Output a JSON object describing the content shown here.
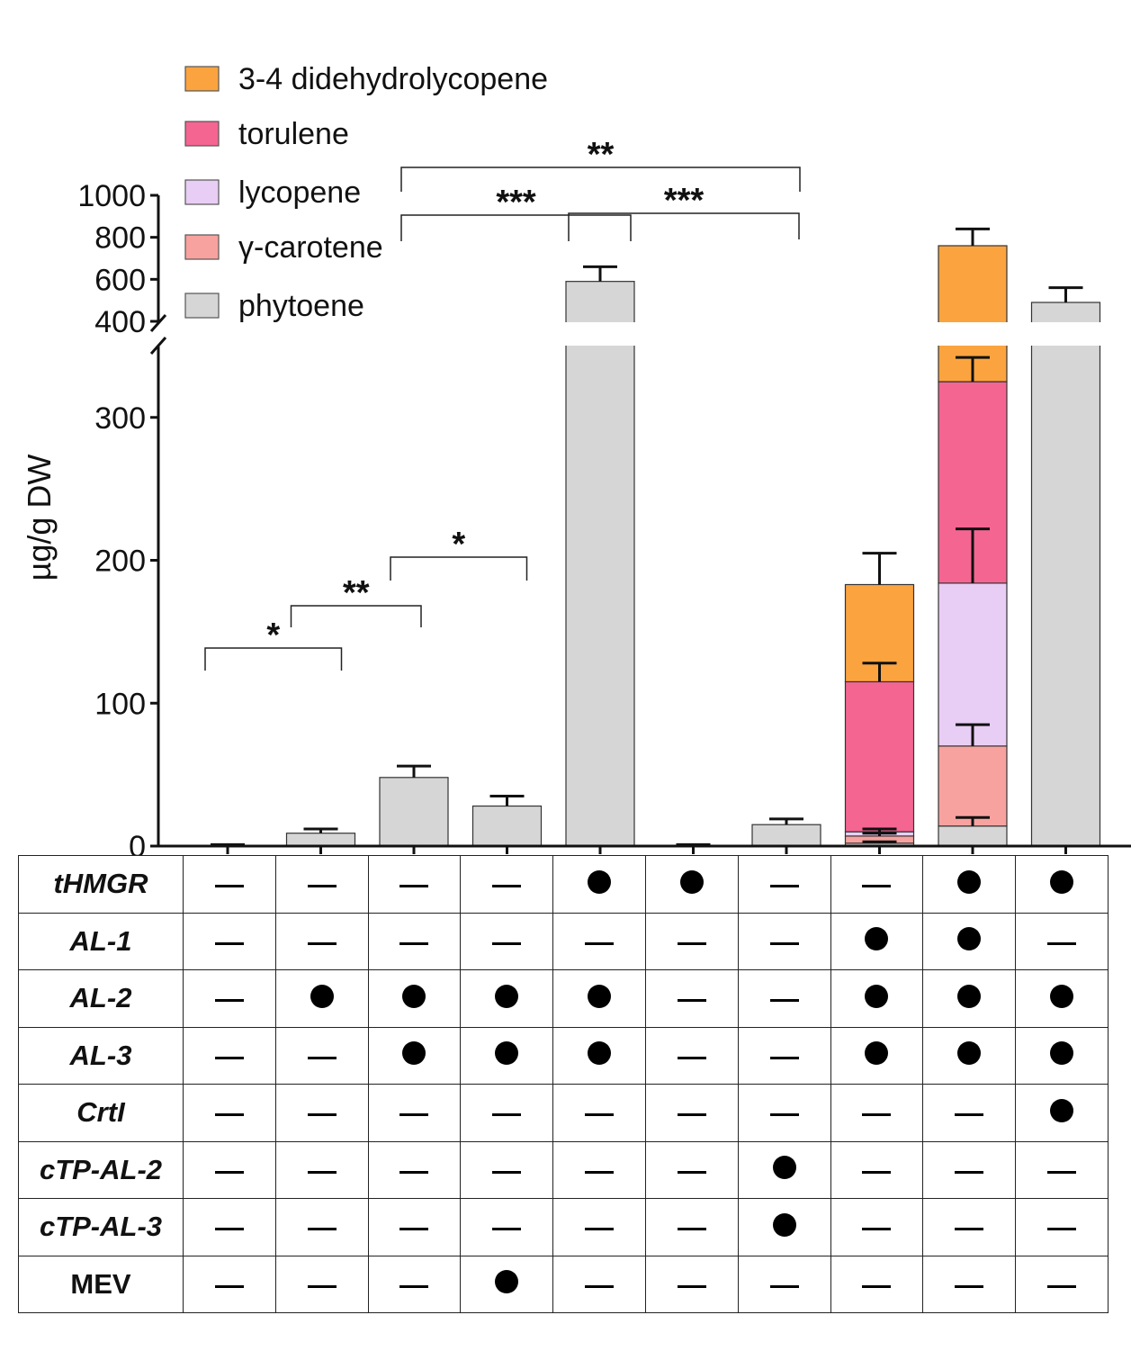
{
  "chart_data": {
    "type": "bar",
    "stacked": true,
    "ylabel": "µg/g DW",
    "axis_break": true,
    "y_lower": {
      "range": [
        0,
        350
      ],
      "ticks": [
        0,
        100,
        200,
        300
      ],
      "tick_labels": [
        "0",
        "100",
        "200",
        "300"
      ]
    },
    "y_upper": {
      "range": [
        400,
        1000
      ],
      "ticks": [
        400,
        600,
        800,
        1000
      ],
      "tick_labels": [
        "400",
        "600",
        "800",
        "1000"
      ]
    },
    "legend": [
      {
        "name": "3-4 didehydrolycopene",
        "color": "#FBA43F"
      },
      {
        "name": "torulene",
        "color": "#F56592"
      },
      {
        "name": "lycopene",
        "color": "#E8CDF4"
      },
      {
        "name": "γ-carotene",
        "color": "#F7A29F"
      },
      {
        "name": "phytoene",
        "color": "#D6D6D6"
      }
    ],
    "stack_order": [
      "phytoene",
      "γ-carotene",
      "lycopene",
      "torulene",
      "3-4 didehydrolycopene"
    ],
    "bars": [
      {
        "index": 1,
        "segments": {
          "phytoene": 0.5
        },
        "error": 0.5
      },
      {
        "index": 2,
        "segments": {
          "phytoene": 9
        },
        "error": 3
      },
      {
        "index": 3,
        "segments": {
          "phytoene": 48
        },
        "error": 8
      },
      {
        "index": 4,
        "segments": {
          "phytoene": 28
        },
        "error": 7
      },
      {
        "index": 5,
        "segments": {
          "phytoene": 590
        },
        "error": 70
      },
      {
        "index": 6,
        "segments": {
          "phytoene": 0.5
        },
        "error": 0.5
      },
      {
        "index": 7,
        "segments": {
          "phytoene": 15
        },
        "error": 4
      },
      {
        "index": 8,
        "segments": {
          "phytoene": 2,
          "γ-carotene": 5,
          "lycopene": 3,
          "torulene": 105,
          "3-4 didehydrolycopene": 68
        },
        "segment_errors": {
          "phytoene": 1,
          "γ-carotene": 2,
          "lycopene": 2,
          "torulene": 13,
          "3-4 didehydrolycopene": 22
        }
      },
      {
        "index": 9,
        "segments": {
          "phytoene": 14,
          "γ-carotene": 56,
          "lycopene": 114,
          "torulene": 141,
          "3-4 didehydrolycopene": 435
        },
        "segment_errors": {
          "phytoene": 6,
          "γ-carotene": 15,
          "lycopene": 38,
          "torulene": 17,
          "3-4 didehydrolycopene": 80
        }
      },
      {
        "index": 10,
        "segments": {
          "phytoene": 490
        },
        "error": 70
      }
    ],
    "significance": [
      {
        "from": 1,
        "to": 2,
        "label": "*"
      },
      {
        "from": 2,
        "to": 3,
        "label": "**"
      },
      {
        "from": 3,
        "to": 4,
        "label": "*"
      },
      {
        "from": 3,
        "to": 5,
        "label": "***"
      },
      {
        "from": 5,
        "to": 7,
        "label": "***"
      },
      {
        "from": 3,
        "to": 7,
        "label": "**"
      }
    ]
  },
  "table": {
    "rows": [
      {
        "gene": "tHMGR",
        "italic": true,
        "cells": [
          0,
          0,
          0,
          0,
          1,
          1,
          0,
          0,
          1,
          1
        ]
      },
      {
        "gene": "AL-1",
        "italic": true,
        "cells": [
          0,
          0,
          0,
          0,
          0,
          0,
          0,
          1,
          1,
          0
        ]
      },
      {
        "gene": "AL-2",
        "italic": true,
        "cells": [
          0,
          1,
          1,
          1,
          1,
          0,
          0,
          1,
          1,
          1
        ]
      },
      {
        "gene": "AL-3",
        "italic": true,
        "cells": [
          0,
          0,
          1,
          1,
          1,
          0,
          0,
          1,
          1,
          1
        ]
      },
      {
        "gene": "CrtI",
        "italic": true,
        "cells": [
          0,
          0,
          0,
          0,
          0,
          0,
          0,
          0,
          0,
          1
        ]
      },
      {
        "gene": "cTP-AL-2",
        "italic": true,
        "cells": [
          0,
          0,
          0,
          0,
          0,
          0,
          1,
          0,
          0,
          0
        ]
      },
      {
        "gene": "cTP-AL-3",
        "italic": true,
        "cells": [
          0,
          0,
          0,
          0,
          0,
          0,
          1,
          0,
          0,
          0
        ]
      },
      {
        "gene": "MEV",
        "italic": false,
        "cells": [
          0,
          0,
          0,
          1,
          0,
          0,
          0,
          0,
          0,
          0
        ]
      }
    ]
  }
}
